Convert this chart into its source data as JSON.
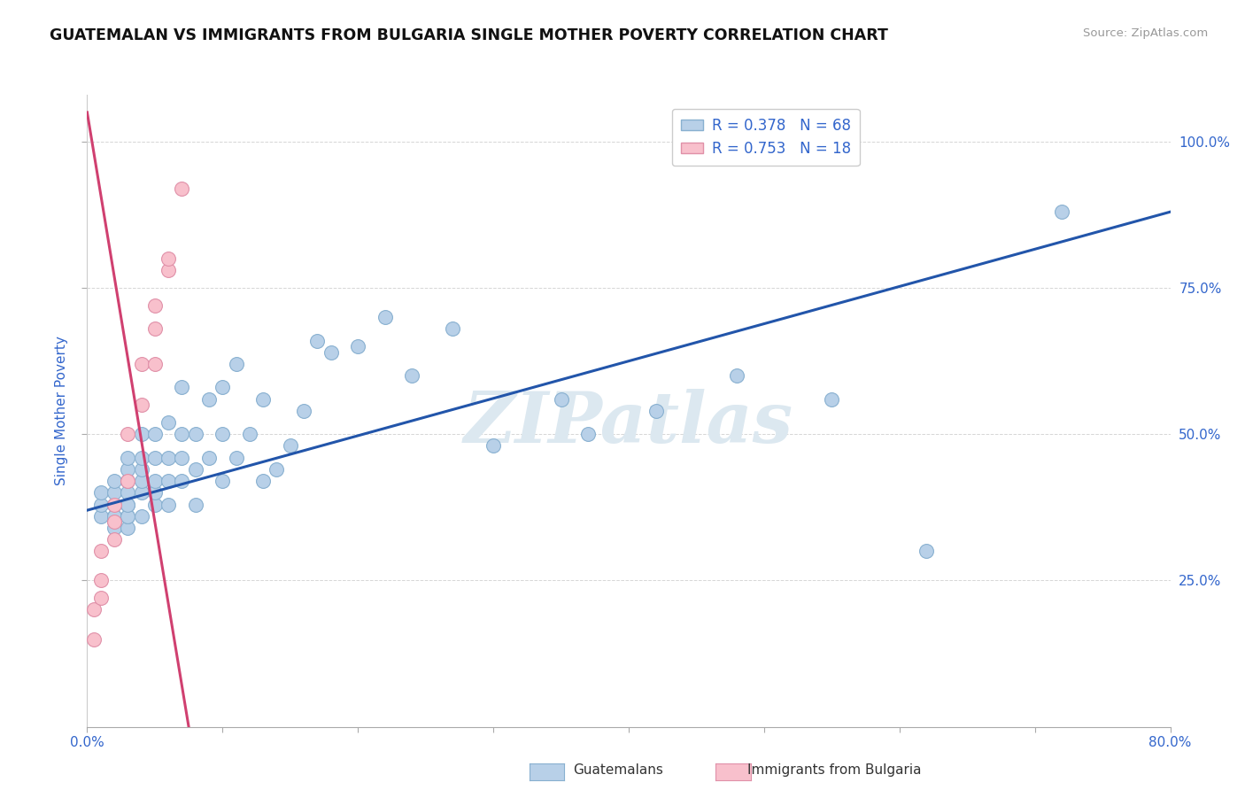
{
  "title": "GUATEMALAN VS IMMIGRANTS FROM BULGARIA SINGLE MOTHER POVERTY CORRELATION CHART",
  "source": "Source: ZipAtlas.com",
  "ylabel": "Single Mother Poverty",
  "x_min": 0.0,
  "x_max": 0.8,
  "y_min": 0.0,
  "y_max": 1.08,
  "legend_r1": "R = 0.378",
  "legend_n1": "N = 68",
  "legend_r2": "R = 0.753",
  "legend_n2": "N = 18",
  "blue_color": "#b8d0e8",
  "blue_edge": "#88b0d0",
  "blue_line": "#2255aa",
  "pink_color": "#f8c0cc",
  "pink_edge": "#e090a8",
  "pink_line": "#d04070",
  "label_color": "#3366cc",
  "watermark_color": "#dce8f0",
  "grid_color": "#cccccc",
  "bg_color": "#ffffff",
  "blue_scatter_x": [
    0.01,
    0.01,
    0.01,
    0.02,
    0.02,
    0.02,
    0.02,
    0.02,
    0.02,
    0.02,
    0.03,
    0.03,
    0.03,
    0.03,
    0.03,
    0.03,
    0.03,
    0.03,
    0.03,
    0.04,
    0.04,
    0.04,
    0.04,
    0.04,
    0.04,
    0.05,
    0.05,
    0.05,
    0.05,
    0.05,
    0.06,
    0.06,
    0.06,
    0.06,
    0.07,
    0.07,
    0.07,
    0.07,
    0.08,
    0.08,
    0.08,
    0.09,
    0.09,
    0.1,
    0.1,
    0.1,
    0.11,
    0.11,
    0.12,
    0.13,
    0.13,
    0.14,
    0.15,
    0.16,
    0.17,
    0.18,
    0.2,
    0.22,
    0.24,
    0.27,
    0.3,
    0.35,
    0.37,
    0.42,
    0.48,
    0.55,
    0.62,
    0.72
  ],
  "blue_scatter_y": [
    0.36,
    0.38,
    0.4,
    0.35,
    0.36,
    0.38,
    0.4,
    0.42,
    0.36,
    0.34,
    0.34,
    0.36,
    0.38,
    0.4,
    0.42,
    0.44,
    0.46,
    0.36,
    0.38,
    0.4,
    0.42,
    0.44,
    0.46,
    0.5,
    0.36,
    0.38,
    0.4,
    0.42,
    0.46,
    0.5,
    0.38,
    0.42,
    0.46,
    0.52,
    0.42,
    0.46,
    0.5,
    0.58,
    0.38,
    0.44,
    0.5,
    0.46,
    0.56,
    0.42,
    0.5,
    0.58,
    0.46,
    0.62,
    0.5,
    0.42,
    0.56,
    0.44,
    0.48,
    0.54,
    0.66,
    0.64,
    0.65,
    0.7,
    0.6,
    0.68,
    0.48,
    0.56,
    0.5,
    0.54,
    0.6,
    0.56,
    0.3,
    0.88
  ],
  "pink_scatter_x": [
    0.005,
    0.005,
    0.01,
    0.01,
    0.01,
    0.02,
    0.02,
    0.02,
    0.03,
    0.03,
    0.04,
    0.04,
    0.05,
    0.05,
    0.05,
    0.06,
    0.06,
    0.07
  ],
  "pink_scatter_y": [
    0.15,
    0.2,
    0.22,
    0.25,
    0.3,
    0.32,
    0.35,
    0.38,
    0.42,
    0.5,
    0.55,
    0.62,
    0.62,
    0.68,
    0.72,
    0.78,
    0.8,
    0.92
  ],
  "blue_trend_x": [
    0.0,
    0.8
  ],
  "blue_trend_y": [
    0.37,
    0.88
  ],
  "pink_trend_x": [
    0.0,
    0.075
  ],
  "pink_trend_y": [
    1.05,
    0.0
  ],
  "x_tick_positions": [
    0.0,
    0.1,
    0.2,
    0.3,
    0.4,
    0.5,
    0.6,
    0.7,
    0.8
  ],
  "y_tick_positions": [
    0.25,
    0.5,
    0.75,
    1.0
  ]
}
